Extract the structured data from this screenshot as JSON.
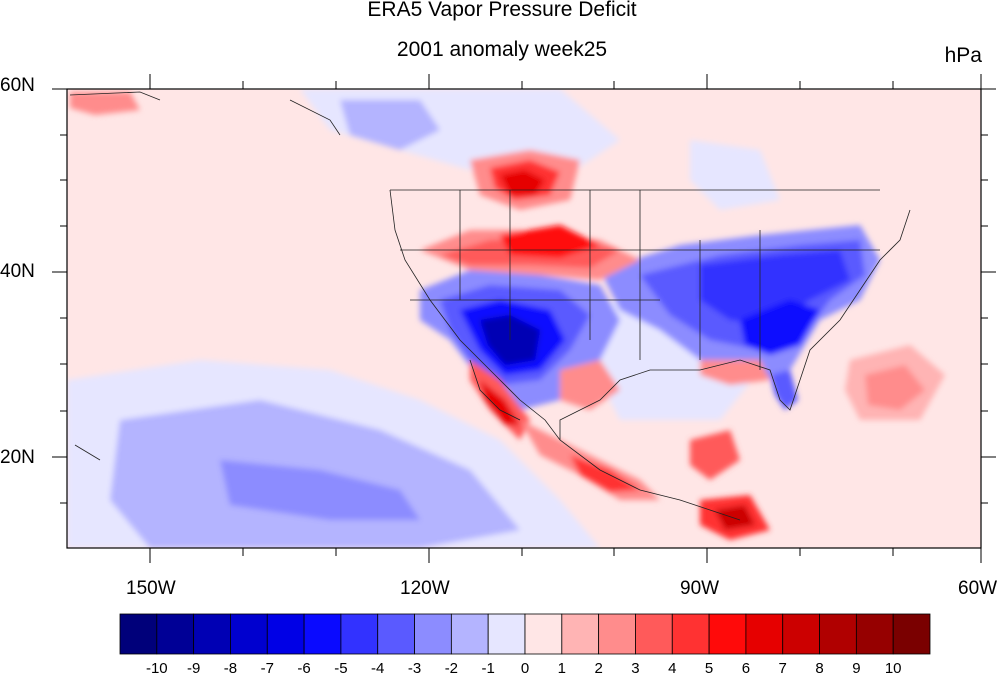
{
  "figure": {
    "title": "ERA5 Vapor Pressure Deficit",
    "subtitle": "2001 anomaly week25",
    "units": "hPa"
  },
  "axes": {
    "lat_labels": [
      "60N",
      "40N",
      "20N"
    ],
    "lon_labels": [
      "150W",
      "120W",
      "90W",
      "60W"
    ],
    "lat_range": [
      10,
      60
    ],
    "lon_range": [
      -159,
      -61
    ]
  },
  "colorbar": {
    "labels": [
      "-10",
      "-9",
      "-8",
      "-7",
      "-6",
      "-5",
      "-4",
      "-3",
      "-2",
      "-1",
      "0",
      "1",
      "2",
      "3",
      "4",
      "5",
      "6",
      "7",
      "8",
      "9",
      "10"
    ],
    "colors": [
      "#00007a",
      "#000096",
      "#0000b4",
      "#0000cf",
      "#0000e6",
      "#0a0aff",
      "#3232ff",
      "#5a5aff",
      "#8c8cff",
      "#b4b4ff",
      "#e6e6ff",
      "#ffe6e6",
      "#ffb4b4",
      "#ff8c8c",
      "#ff5a5a",
      "#ff3232",
      "#ff0a0a",
      "#e60000",
      "#cc0000",
      "#b00000",
      "#960000",
      "#7a0000"
    ]
  },
  "regions": [
    {
      "name": "southwest-us-deficit",
      "value": -9
    },
    {
      "name": "eastern-us-deficit",
      "value": -6
    },
    {
      "name": "north-central-us-excess",
      "value": 5
    },
    {
      "name": "baja-mexico-excess",
      "value": 6
    },
    {
      "name": "central-america-excess",
      "value": 7
    }
  ]
}
